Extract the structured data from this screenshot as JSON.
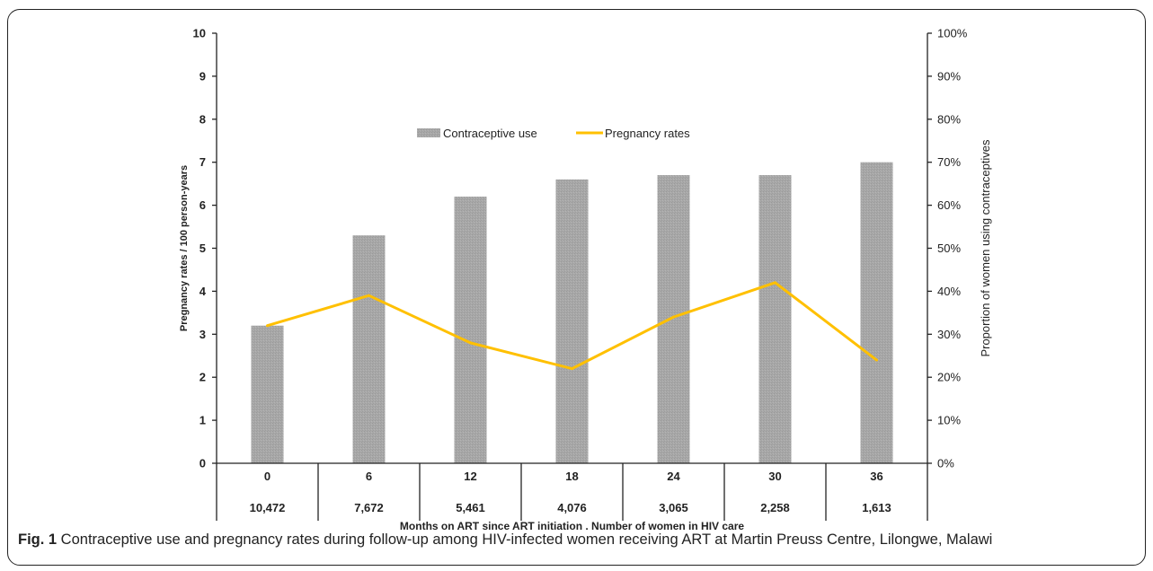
{
  "chart_data": {
    "type": "bar+line",
    "categories": [
      "0",
      "6",
      "12",
      "18",
      "24",
      "30",
      "36"
    ],
    "sub_categories": [
      "10,472",
      "7,672",
      "5,461",
      "4,076",
      "3,065",
      "2,258",
      "1,613"
    ],
    "series": [
      {
        "name": "Contraceptive use",
        "type": "bar",
        "axis": "right",
        "values": [
          32,
          53,
          62,
          66,
          67,
          67,
          70
        ],
        "color": "#a6a6a6"
      },
      {
        "name": "Pregnancy rates",
        "type": "line",
        "axis": "left",
        "values": [
          3.2,
          3.9,
          2.8,
          2.2,
          3.4,
          4.2,
          2.4
        ],
        "color": "#ffc000"
      }
    ],
    "ylabel": "Pregnancy rates / 100 person-years",
    "y2label": "Proportion of women using contraceptives",
    "xlabel": "Months on ART since ART initiation , Number of women in HIV care",
    "ylim": [
      0,
      10
    ],
    "y2lim": [
      0,
      100
    ],
    "yticks": [
      "0",
      "1",
      "2",
      "3",
      "4",
      "5",
      "6",
      "7",
      "8",
      "9",
      "10"
    ],
    "y2ticks": [
      "0%",
      "10%",
      "20%",
      "30%",
      "40%",
      "50%",
      "60%",
      "70%",
      "80%",
      "90%",
      "100%"
    ],
    "grid": false,
    "legend": "top-center"
  },
  "caption": {
    "label": "Fig. 1",
    "text": " Contraceptive use and pregnancy rates during follow-up among HIV-infected women receiving ART at Martin Preuss Centre, Lilongwe, Malawi"
  }
}
